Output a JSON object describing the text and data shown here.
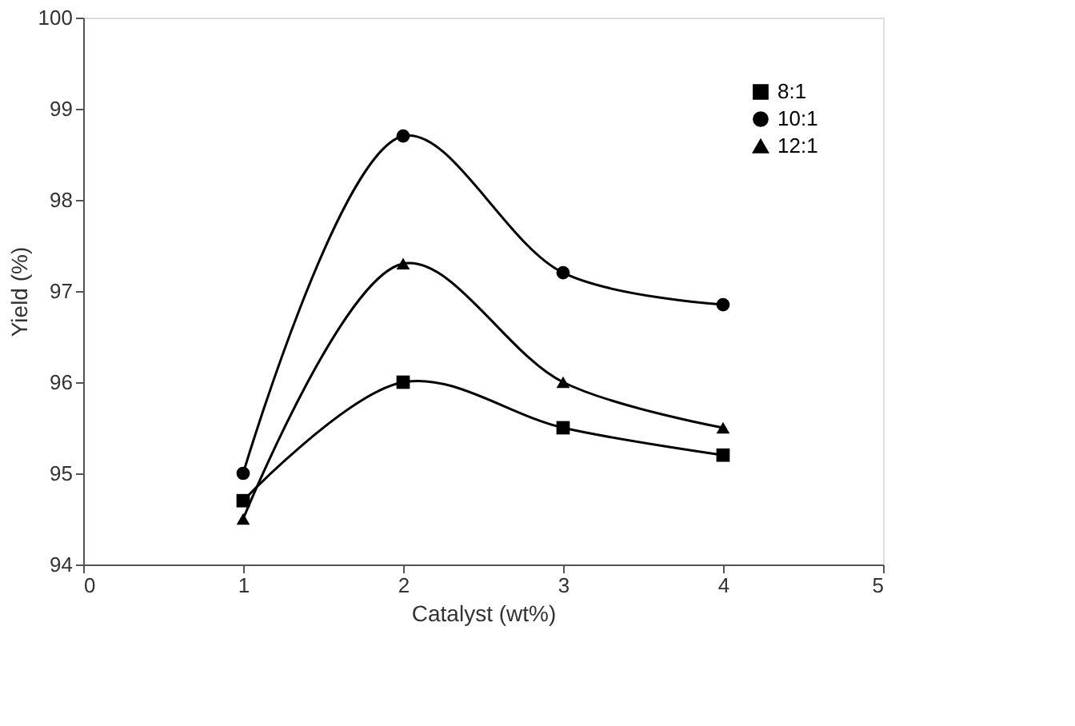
{
  "chart_data": {
    "type": "line",
    "xlabel": "Catalyst (wt%)",
    "ylabel": "Yield (%)",
    "series": [
      {
        "name": "8:1",
        "color": "#000000",
        "marker": "square",
        "x": [
          1,
          2,
          3,
          4
        ],
        "values": [
          94.7,
          96.0,
          95.5,
          95.2
        ]
      },
      {
        "name": "10:1",
        "color": "#000000",
        "marker": "circle",
        "x": [
          1,
          2,
          3,
          4
        ],
        "values": [
          95.0,
          98.7,
          97.2,
          96.85
        ]
      },
      {
        "name": "12:1",
        "color": "#000000",
        "marker": "triangle",
        "x": [
          1,
          2,
          3,
          4
        ],
        "values": [
          94.5,
          97.3,
          96.0,
          95.5
        ]
      }
    ],
    "xlim": [
      0,
      5
    ],
    "xticks": [
      0,
      1,
      2,
      3,
      4,
      5
    ],
    "ylim": [
      94,
      100
    ],
    "yticks": [
      94,
      95,
      96,
      97,
      98,
      99,
      100
    ],
    "grid": false,
    "legend": "top right",
    "line_style": "solid"
  }
}
